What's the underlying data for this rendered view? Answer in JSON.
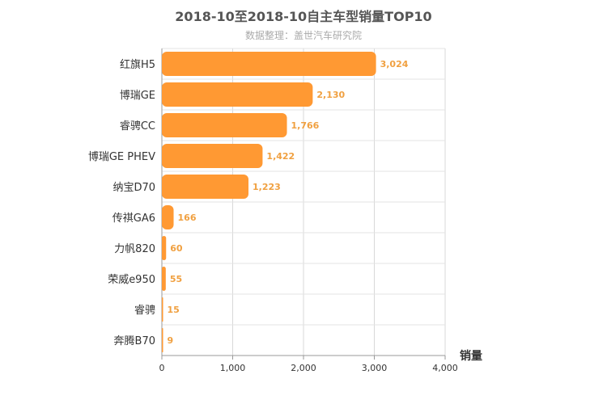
{
  "chart_data": {
    "type": "bar",
    "orientation": "horizontal",
    "title": "2018-10至2018-10自主车型销量TOP10",
    "subtitle": "数据整理：盖世汽车研究院",
    "xlabel": "销量",
    "ylabel": "",
    "xlim": [
      0,
      4000
    ],
    "xticks": [
      "0",
      "1,000",
      "2,000",
      "3,000",
      "4,000"
    ],
    "categories": [
      "红旗H5",
      "博瑞GE",
      "睿骋CC",
      "博瑞GE PHEV",
      "纳宝D70",
      "传祺GA6",
      "力帆820",
      "荣威e950",
      "睿骋",
      "奔腾B70"
    ],
    "values": [
      3024,
      2130,
      1766,
      1422,
      1223,
      166,
      60,
      55,
      15,
      9
    ],
    "value_labels": [
      "3,024",
      "2,130",
      "1,766",
      "1,422",
      "1,223",
      "166",
      "60",
      "55",
      "15",
      "9"
    ],
    "grid": true,
    "bar_color": "#ff9933",
    "label_color": "#f0a040"
  }
}
